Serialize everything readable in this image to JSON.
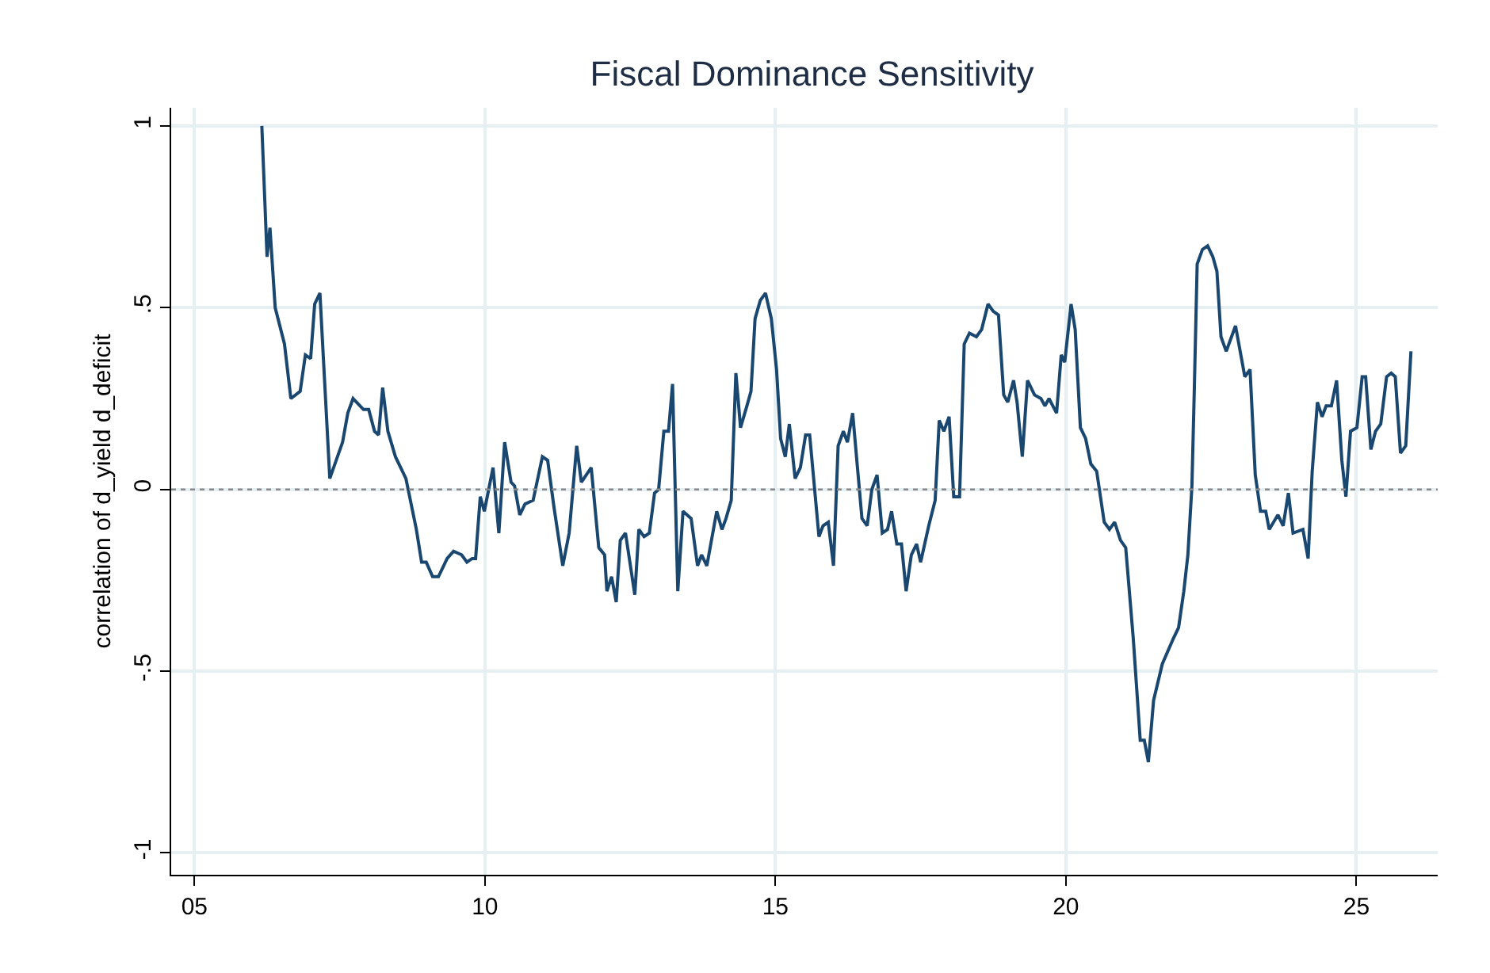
{
  "chart_data": {
    "type": "line",
    "title": "Fiscal Dominance Sensitivity",
    "ylabel": "correlation of d_yield d_deficit",
    "xlim": [
      4.6,
      26.4
    ],
    "ylim": [
      -1.06,
      1.05
    ],
    "xticks": [
      {
        "value": 5,
        "label": "05"
      },
      10,
      15,
      20,
      25
    ],
    "yticks": [
      -1,
      {
        "value": -0.5,
        "label": "-.5"
      },
      0,
      {
        "value": 0.5,
        "label": ".5"
      },
      1
    ],
    "grid": true,
    "marker": "none",
    "line_style": "solid",
    "ref_lines": [
      {
        "axis": "y",
        "value": 0,
        "color": "#888888",
        "line_style": "dotted"
      }
    ],
    "series": [
      {
        "color": "#1a476f",
        "x": [
          6.16,
          6.25,
          6.3,
          6.39,
          6.55,
          6.66,
          6.82,
          6.91,
          7.0,
          7.07,
          7.16,
          7.33,
          7.55,
          7.64,
          7.73,
          7.91,
          8.0,
          8.1,
          8.17,
          8.24,
          8.33,
          8.46,
          8.64,
          8.82,
          8.91,
          8.99,
          9.1,
          9.2,
          9.35,
          9.46,
          9.6,
          9.69,
          9.78,
          9.84,
          9.92,
          9.99,
          10.14,
          10.24,
          10.34,
          10.45,
          10.51,
          10.6,
          10.69,
          10.83,
          10.99,
          11.08,
          11.19,
          11.34,
          11.45,
          11.58,
          11.66,
          11.83,
          11.96,
          12.06,
          12.1,
          12.18,
          12.26,
          12.33,
          12.42,
          12.58,
          12.65,
          12.74,
          12.83,
          12.92,
          12.99,
          13.08,
          13.16,
          13.23,
          13.32,
          13.41,
          13.55,
          13.66,
          13.73,
          13.82,
          13.99,
          14.08,
          14.15,
          14.24,
          14.32,
          14.4,
          14.51,
          14.58,
          14.65,
          14.74,
          14.83,
          14.93,
          15.02,
          15.09,
          15.17,
          15.24,
          15.34,
          15.43,
          15.52,
          15.59,
          15.75,
          15.82,
          15.91,
          16.0,
          16.08,
          16.17,
          16.24,
          16.33,
          16.49,
          16.58,
          16.66,
          16.75,
          16.84,
          16.93,
          17.0,
          17.09,
          17.17,
          17.25,
          17.34,
          17.43,
          17.5,
          17.64,
          17.75,
          17.82,
          17.9,
          17.99,
          18.07,
          18.17,
          18.25,
          18.34,
          18.46,
          18.55,
          18.66,
          18.75,
          18.84,
          18.93,
          19.0,
          19.1,
          19.16,
          19.25,
          19.34,
          19.46,
          19.57,
          19.64,
          19.71,
          19.84,
          19.92,
          19.98,
          20.09,
          20.16,
          20.25,
          20.34,
          20.43,
          20.53,
          20.66,
          20.75,
          20.84,
          20.94,
          21.03,
          21.16,
          21.28,
          21.35,
          21.42,
          21.51,
          21.66,
          21.85,
          21.94,
          22.03,
          22.1,
          22.17,
          22.21,
          22.26,
          22.35,
          22.44,
          22.53,
          22.6,
          22.67,
          22.76,
          22.92,
          23.08,
          23.17,
          23.26,
          23.35,
          23.44,
          23.5,
          23.65,
          23.74,
          23.83,
          23.91,
          24.08,
          24.17,
          24.24,
          24.33,
          24.41,
          24.48,
          24.57,
          24.66,
          24.75,
          24.82,
          24.9,
          25.01,
          25.1,
          25.16,
          25.25,
          25.33,
          25.42,
          25.52,
          25.6,
          25.67,
          25.76,
          25.85,
          25.94
        ],
        "values": [
          1.0,
          0.64,
          0.72,
          0.5,
          0.4,
          0.25,
          0.27,
          0.37,
          0.36,
          0.51,
          0.54,
          0.03,
          0.13,
          0.21,
          0.25,
          0.22,
          0.22,
          0.16,
          0.15,
          0.28,
          0.16,
          0.09,
          0.03,
          -0.11,
          -0.2,
          -0.2,
          -0.24,
          -0.24,
          -0.19,
          -0.17,
          -0.18,
          -0.2,
          -0.19,
          -0.19,
          -0.02,
          -0.06,
          0.06,
          -0.12,
          0.13,
          0.02,
          0.01,
          -0.07,
          -0.04,
          -0.03,
          0.09,
          0.08,
          -0.05,
          -0.21,
          -0.12,
          0.12,
          0.02,
          0.06,
          -0.16,
          -0.18,
          -0.28,
          -0.24,
          -0.31,
          -0.14,
          -0.12,
          -0.29,
          -0.11,
          -0.13,
          -0.12,
          -0.01,
          0.0,
          0.16,
          0.16,
          0.29,
          -0.28,
          -0.06,
          -0.08,
          -0.21,
          -0.18,
          -0.21,
          -0.06,
          -0.11,
          -0.08,
          -0.03,
          0.32,
          0.17,
          0.23,
          0.27,
          0.47,
          0.52,
          0.54,
          0.47,
          0.33,
          0.14,
          0.09,
          0.18,
          0.03,
          0.06,
          0.15,
          0.15,
          -0.13,
          -0.1,
          -0.09,
          -0.21,
          0.12,
          0.16,
          0.13,
          0.21,
          -0.08,
          -0.1,
          0.0,
          0.04,
          -0.12,
          -0.11,
          -0.06,
          -0.15,
          -0.15,
          -0.28,
          -0.18,
          -0.15,
          -0.2,
          -0.1,
          -0.03,
          0.19,
          0.16,
          0.2,
          -0.02,
          -0.02,
          0.4,
          0.43,
          0.42,
          0.44,
          0.51,
          0.49,
          0.48,
          0.26,
          0.24,
          0.3,
          0.24,
          0.09,
          0.3,
          0.26,
          0.25,
          0.23,
          0.25,
          0.21,
          0.37,
          0.35,
          0.51,
          0.44,
          0.17,
          0.14,
          0.07,
          0.05,
          -0.09,
          -0.11,
          -0.09,
          -0.14,
          -0.16,
          -0.41,
          -0.69,
          -0.69,
          -0.75,
          -0.58,
          -0.48,
          -0.41,
          -0.38,
          -0.28,
          -0.18,
          0.01,
          0.27,
          0.62,
          0.66,
          0.67,
          0.64,
          0.6,
          0.42,
          0.38,
          0.45,
          0.31,
          0.33,
          0.04,
          -0.06,
          -0.06,
          -0.11,
          -0.07,
          -0.1,
          -0.01,
          -0.12,
          -0.11,
          -0.19,
          0.05,
          0.24,
          0.2,
          0.23,
          0.23,
          0.3,
          0.08,
          -0.02,
          0.16,
          0.17,
          0.31,
          0.31,
          0.11,
          0.16,
          0.18,
          0.31,
          0.32,
          0.31,
          0.1,
          0.12,
          0.38
        ]
      }
    ]
  }
}
